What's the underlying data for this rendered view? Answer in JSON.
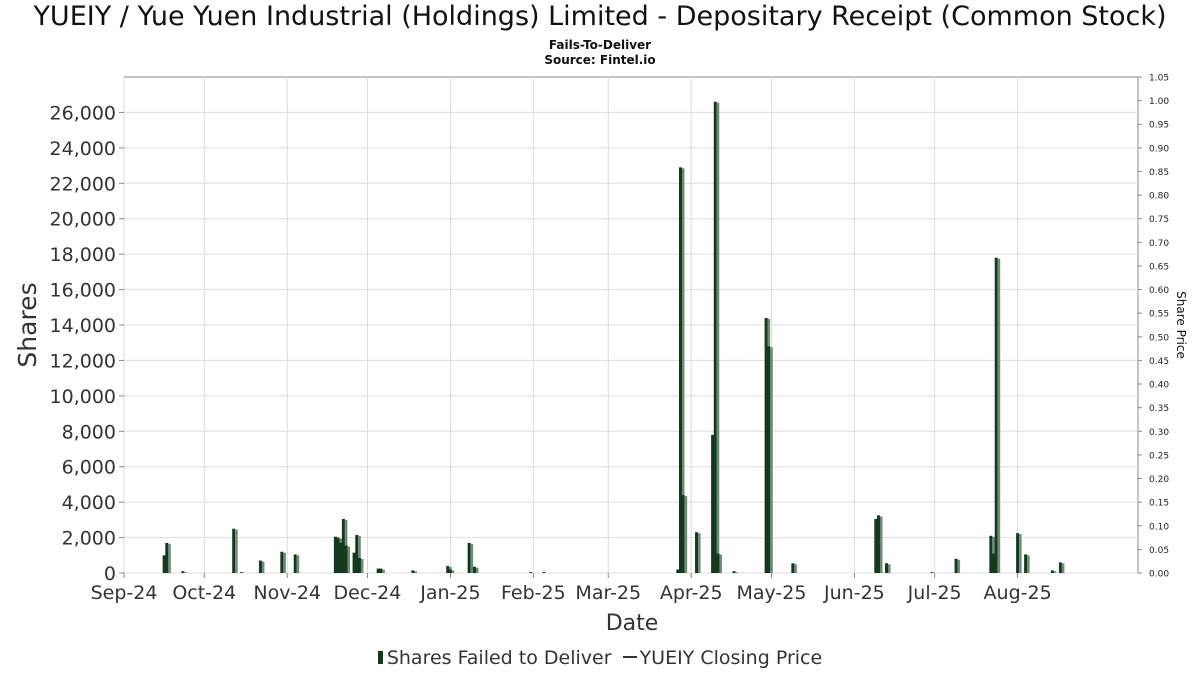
{
  "chart_data": {
    "type": "bar",
    "title": "YUEIY / Yue Yuen Industrial (Holdings) Limited - Depositary Receipt (Common Stock)",
    "subtitle": [
      "Fails-To-Deliver",
      "Source: Fintel.io"
    ],
    "xlabel": "Date",
    "ylabel": "Shares",
    "y2label": "Share Price",
    "x_range": [
      "2024-09-01",
      "2025-09-15"
    ],
    "ylim": [
      0,
      28000
    ],
    "y2lim": [
      0,
      1.05
    ],
    "yticks": [
      0,
      2000,
      4000,
      6000,
      8000,
      10000,
      12000,
      14000,
      16000,
      18000,
      20000,
      22000,
      24000,
      26000
    ],
    "ytick_labels": [
      "0",
      "2,000",
      "4,000",
      "6,000",
      "8,000",
      "10,000",
      "12,000",
      "14,000",
      "16,000",
      "18,000",
      "20,000",
      "22,000",
      "24,000",
      "26,000"
    ],
    "y2ticks": [
      "0.00",
      "0.05",
      "0.10",
      "0.15",
      "0.20",
      "0.25",
      "0.30",
      "0.35",
      "0.40",
      "0.45",
      "0.50",
      "0.55",
      "0.60",
      "0.65",
      "0.70",
      "0.75",
      "0.80",
      "0.85",
      "0.90",
      "0.95",
      "1.00",
      "1.05"
    ],
    "xticks": [
      {
        "label": "Sep-24",
        "date": "2024-09-01"
      },
      {
        "label": "Oct-24",
        "date": "2024-10-01"
      },
      {
        "label": "Nov-24",
        "date": "2024-11-01"
      },
      {
        "label": "Dec-24",
        "date": "2024-12-01"
      },
      {
        "label": "Jan-25",
        "date": "2025-01-01"
      },
      {
        "label": "Feb-25",
        "date": "2025-02-01"
      },
      {
        "label": "Mar-25",
        "date": "2025-03-01"
      },
      {
        "label": "Apr-25",
        "date": "2025-04-01"
      },
      {
        "label": "May-25",
        "date": "2025-05-01"
      },
      {
        "label": "Jun-25",
        "date": "2025-06-01"
      },
      {
        "label": "Jul-25",
        "date": "2025-07-01"
      },
      {
        "label": "Aug-25",
        "date": "2025-08-01"
      }
    ],
    "series": [
      {
        "name": "Shares Failed to Deliver",
        "color": "#14391f",
        "points": [
          {
            "date": "2024-09-16",
            "value": 1000
          },
          {
            "date": "2024-09-17",
            "value": 1700
          },
          {
            "date": "2024-09-23",
            "value": 100
          },
          {
            "date": "2024-10-12",
            "value": 2500
          },
          {
            "date": "2024-10-15",
            "value": 50
          },
          {
            "date": "2024-10-22",
            "value": 700
          },
          {
            "date": "2024-10-30",
            "value": 1200
          },
          {
            "date": "2024-11-04",
            "value": 1050
          },
          {
            "date": "2024-11-19",
            "value": 2050
          },
          {
            "date": "2024-11-20",
            "value": 2000
          },
          {
            "date": "2024-11-21",
            "value": 1700
          },
          {
            "date": "2024-11-22",
            "value": 3050
          },
          {
            "date": "2024-11-23",
            "value": 1550
          },
          {
            "date": "2024-11-26",
            "value": 1150
          },
          {
            "date": "2024-11-27",
            "value": 2150
          },
          {
            "date": "2024-11-28",
            "value": 850
          },
          {
            "date": "2024-12-05",
            "value": 250
          },
          {
            "date": "2024-12-06",
            "value": 250
          },
          {
            "date": "2024-12-18",
            "value": 150
          },
          {
            "date": "2024-12-31",
            "value": 400
          },
          {
            "date": "2025-01-01",
            "value": 200
          },
          {
            "date": "2025-01-08",
            "value": 1700
          },
          {
            "date": "2025-01-10",
            "value": 350
          },
          {
            "date": "2025-01-31",
            "value": 50
          },
          {
            "date": "2025-02-05",
            "value": 50
          },
          {
            "date": "2025-03-27",
            "value": 200
          },
          {
            "date": "2025-03-28",
            "value": 22900
          },
          {
            "date": "2025-03-29",
            "value": 4400
          },
          {
            "date": "2025-04-03",
            "value": 2300
          },
          {
            "date": "2025-04-09",
            "value": 7800
          },
          {
            "date": "2025-04-10",
            "value": 26600
          },
          {
            "date": "2025-04-11",
            "value": 1100
          },
          {
            "date": "2025-04-17",
            "value": 100
          },
          {
            "date": "2025-04-29",
            "value": 14400
          },
          {
            "date": "2025-04-30",
            "value": 12800
          },
          {
            "date": "2025-05-09",
            "value": 550
          },
          {
            "date": "2025-06-09",
            "value": 3050
          },
          {
            "date": "2025-06-10",
            "value": 3250
          },
          {
            "date": "2025-06-13",
            "value": 550
          },
          {
            "date": "2025-06-30",
            "value": 50
          },
          {
            "date": "2025-07-09",
            "value": 800
          },
          {
            "date": "2025-07-22",
            "value": 2100
          },
          {
            "date": "2025-07-23",
            "value": 1100
          },
          {
            "date": "2025-07-24",
            "value": 17800
          },
          {
            "date": "2025-08-01",
            "value": 2250
          },
          {
            "date": "2025-08-04",
            "value": 1050
          },
          {
            "date": "2025-08-14",
            "value": 150
          },
          {
            "date": "2025-08-17",
            "value": 600
          }
        ]
      },
      {
        "name": "YUEIY Closing Price",
        "color": "#333333",
        "points": []
      }
    ],
    "grid": true,
    "legend": "bottom"
  }
}
